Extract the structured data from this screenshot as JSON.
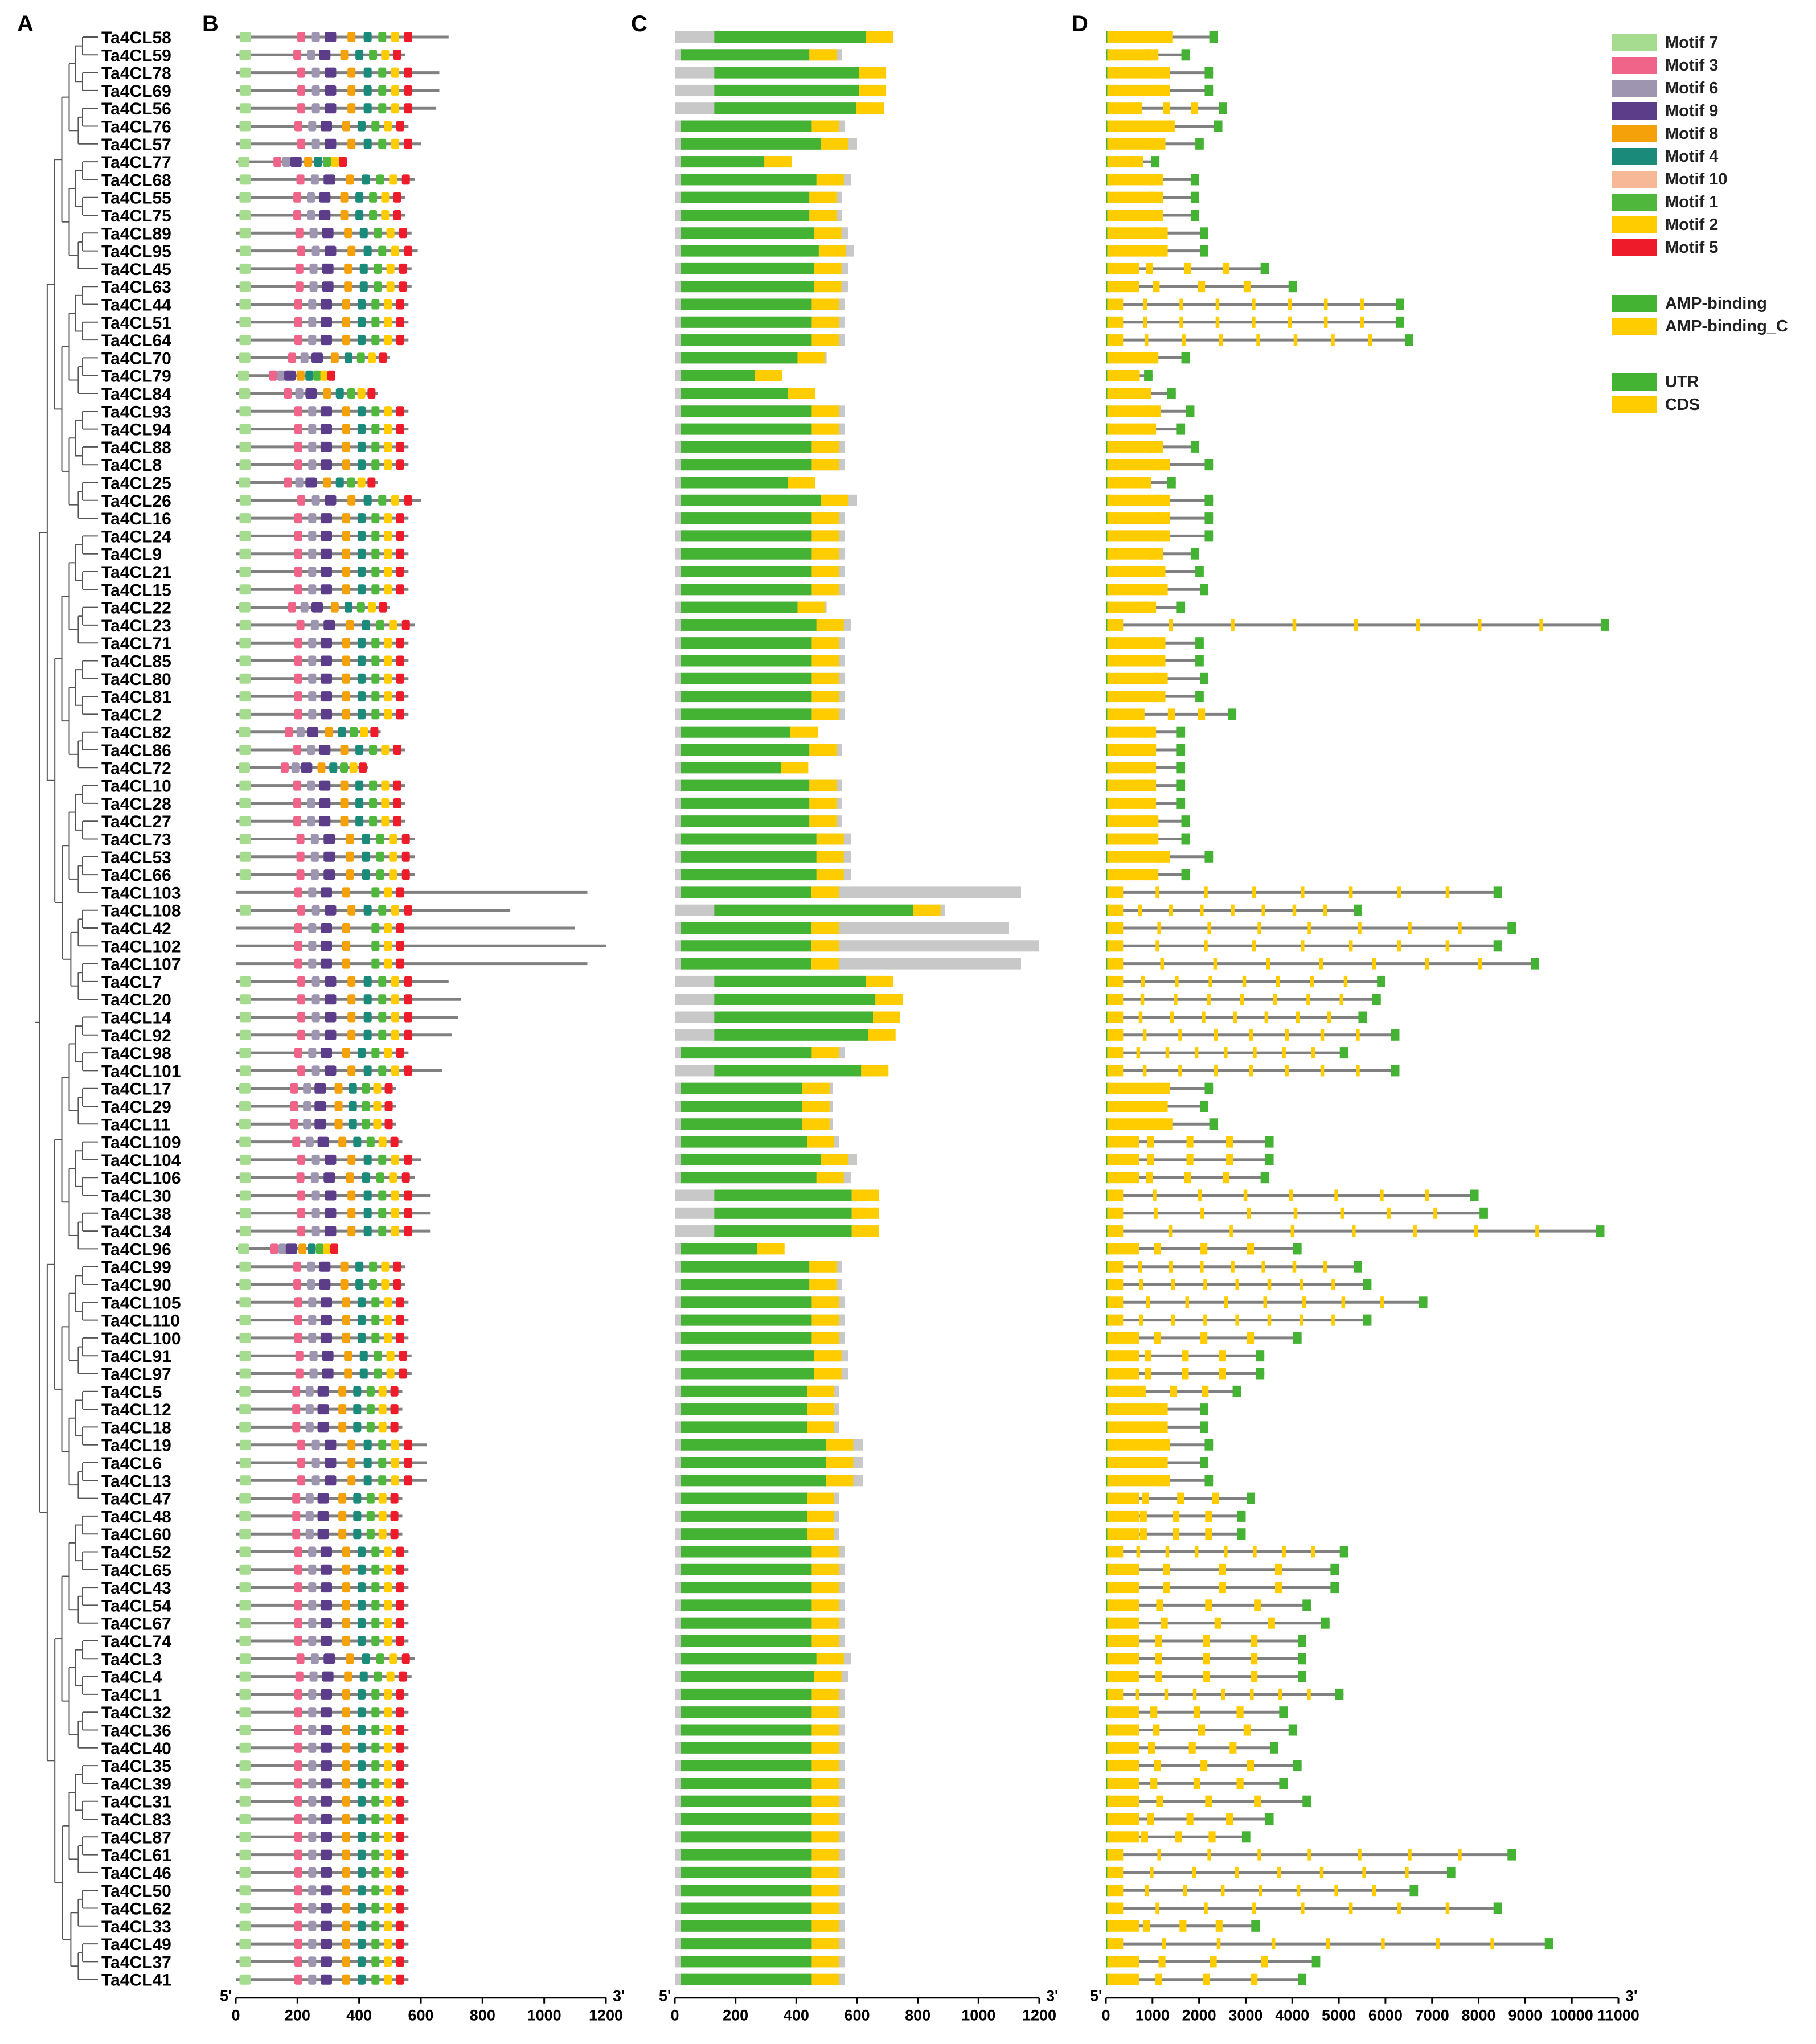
{
  "panels": {
    "a": "A",
    "b": "B",
    "c": "C",
    "d": "D"
  },
  "genes": [
    "Ta4CL58",
    "Ta4CL59",
    "Ta4CL78",
    "Ta4CL69",
    "Ta4CL56",
    "Ta4CL76",
    "Ta4CL57",
    "Ta4CL77",
    "Ta4CL68",
    "Ta4CL55",
    "Ta4CL75",
    "Ta4CL89",
    "Ta4CL95",
    "Ta4CL45",
    "Ta4CL63",
    "Ta4CL44",
    "Ta4CL51",
    "Ta4CL64",
    "Ta4CL70",
    "Ta4CL79",
    "Ta4CL84",
    "Ta4CL93",
    "Ta4CL94",
    "Ta4CL88",
    "Ta4CL8",
    "Ta4CL25",
    "Ta4CL26",
    "Ta4CL16",
    "Ta4CL24",
    "Ta4CL9",
    "Ta4CL21",
    "Ta4CL15",
    "Ta4CL22",
    "Ta4CL23",
    "Ta4CL71",
    "Ta4CL85",
    "Ta4CL80",
    "Ta4CL81",
    "Ta4CL2",
    "Ta4CL82",
    "Ta4CL86",
    "Ta4CL72",
    "Ta4CL10",
    "Ta4CL28",
    "Ta4CL27",
    "Ta4CL73",
    "Ta4CL53",
    "Ta4CL66",
    "Ta4CL103",
    "Ta4CL108",
    "Ta4CL42",
    "Ta4CL102",
    "Ta4CL107",
    "Ta4CL7",
    "Ta4CL20",
    "Ta4CL14",
    "Ta4CL92",
    "Ta4CL98",
    "Ta4CL101",
    "Ta4CL17",
    "Ta4CL29",
    "Ta4CL11",
    "Ta4CL109",
    "Ta4CL104",
    "Ta4CL106",
    "Ta4CL30",
    "Ta4CL38",
    "Ta4CL34",
    "Ta4CL96",
    "Ta4CL99",
    "Ta4CL90",
    "Ta4CL105",
    "Ta4CL110",
    "Ta4CL100",
    "Ta4CL91",
    "Ta4CL97",
    "Ta4CL5",
    "Ta4CL12",
    "Ta4CL18",
    "Ta4CL19",
    "Ta4CL6",
    "Ta4CL13",
    "Ta4CL47",
    "Ta4CL48",
    "Ta4CL60",
    "Ta4CL52",
    "Ta4CL65",
    "Ta4CL43",
    "Ta4CL54",
    "Ta4CL67",
    "Ta4CL74",
    "Ta4CL3",
    "Ta4CL4",
    "Ta4CL1",
    "Ta4CL32",
    "Ta4CL36",
    "Ta4CL40",
    "Ta4CL35",
    "Ta4CL39",
    "Ta4CL31",
    "Ta4CL83",
    "Ta4CL87",
    "Ta4CL61",
    "Ta4CL46",
    "Ta4CL50",
    "Ta4CL62",
    "Ta4CL33",
    "Ta4CL49",
    "Ta4CL37",
    "Ta4CL41"
  ],
  "protein_length": [
    690,
    550,
    660,
    660,
    650,
    560,
    600,
    360,
    580,
    550,
    550,
    570,
    590,
    570,
    570,
    560,
    560,
    560,
    500,
    320,
    460,
    560,
    560,
    560,
    560,
    460,
    600,
    560,
    560,
    560,
    560,
    560,
    500,
    580,
    560,
    560,
    560,
    560,
    560,
    470,
    550,
    430,
    550,
    550,
    550,
    580,
    580,
    580,
    1140,
    890,
    1100,
    1200,
    1140,
    690,
    730,
    720,
    700,
    560,
    670,
    520,
    520,
    520,
    540,
    600,
    580,
    630,
    630,
    630,
    330,
    550,
    550,
    560,
    560,
    560,
    570,
    570,
    540,
    540,
    540,
    620,
    620,
    620,
    540,
    540,
    540,
    560,
    560,
    560,
    560,
    560,
    560,
    580,
    570,
    560,
    560,
    560,
    560,
    560,
    560,
    560,
    560,
    560,
    560,
    560,
    560,
    560,
    560,
    560,
    560,
    560
  ],
  "gene_length": [
    2400,
    1800,
    2300,
    2300,
    2600,
    2500,
    2100,
    1150,
    2000,
    2000,
    2000,
    2200,
    2200,
    3500,
    4100,
    6400,
    6400,
    6600,
    1800,
    1000,
    1500,
    1900,
    1700,
    2000,
    2300,
    1500,
    2300,
    2300,
    2300,
    2000,
    2100,
    2200,
    1700,
    10800,
    2100,
    2100,
    2200,
    2100,
    2800,
    1700,
    1700,
    1700,
    1700,
    1700,
    1800,
    1800,
    2300,
    1800,
    8500,
    5500,
    8800,
    8500,
    9300,
    6000,
    5900,
    5600,
    6300,
    5200,
    6300,
    2300,
    2200,
    2400,
    3600,
    3600,
    3500,
    8000,
    8200,
    10700,
    4200,
    5500,
    5700,
    6900,
    5700,
    4200,
    3400,
    3400,
    2900,
    2200,
    2200,
    2300,
    2200,
    2300,
    3200,
    3000,
    3000,
    5200,
    5000,
    5000,
    4400,
    4800,
    4300,
    4300,
    4300,
    5100,
    3900,
    4100,
    3700,
    4200,
    3900,
    4400,
    3600,
    3100,
    8800,
    7500,
    6700,
    8500,
    3300,
    9600,
    4600,
    4300
  ],
  "axis_b": {
    "ticks": [
      "0",
      "200",
      "400",
      "600",
      "800",
      "1000",
      "1200"
    ],
    "max": 1200,
    "start": "5'",
    "end": "3'"
  },
  "axis_c": {
    "ticks": [
      "0",
      "200",
      "400",
      "600",
      "800",
      "1000",
      "1200"
    ],
    "max": 1200,
    "start": "5'",
    "end": "3'"
  },
  "axis_d": {
    "ticks": [
      "0",
      "1000",
      "2000",
      "3000",
      "4000",
      "5000",
      "6000",
      "7000",
      "8000",
      "9000",
      "10000",
      "11000"
    ],
    "max": 11000,
    "start": "5'",
    "end": "3'"
  },
  "motif_legend": [
    {
      "label": "Motif 7",
      "color": "#a6dc90"
    },
    {
      "label": "Motif 3",
      "color": "#f0648a"
    },
    {
      "label": "Motif 6",
      "color": "#9e96b0"
    },
    {
      "label": "Motif 9",
      "color": "#5c3d8a"
    },
    {
      "label": "Motif 8",
      "color": "#f5a10a"
    },
    {
      "label": "Motif 4",
      "color": "#1a8a7a"
    },
    {
      "label": "Motif 10",
      "color": "#f6b896"
    },
    {
      "label": "Motif 1",
      "color": "#4fb83c"
    },
    {
      "label": "Motif 2",
      "color": "#ffcc00"
    },
    {
      "label": "Motif 5",
      "color": "#ee1c2a"
    }
  ],
  "domain_legend": [
    {
      "label": "AMP-binding",
      "color": "#44b233"
    },
    {
      "label": "AMP-binding_C",
      "color": "#ffcc00"
    }
  ],
  "structure_legend": [
    {
      "label": "UTR",
      "color": "#44b233"
    },
    {
      "label": "CDS",
      "color": "#ffcc00"
    }
  ],
  "colors": {
    "line": "#808080",
    "protein_bg": "#c8c8c8",
    "tree": "#555555"
  }
}
